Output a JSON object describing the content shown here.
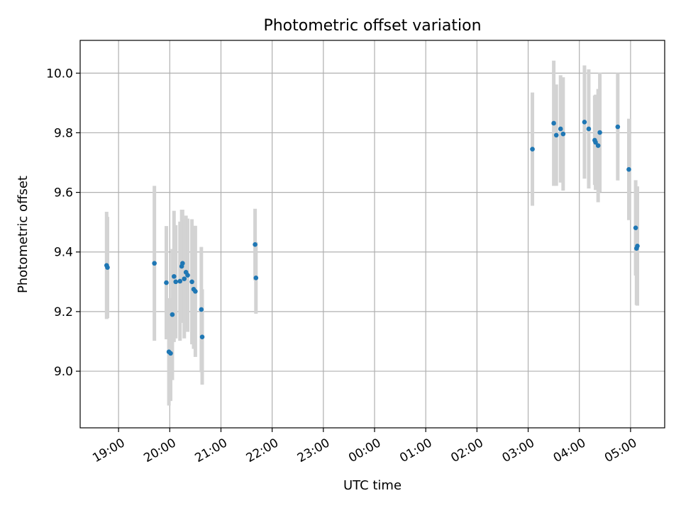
{
  "chart_data": {
    "type": "scatter",
    "title": "Photometric offset variation",
    "xlabel": "UTC time",
    "ylabel": "Photometric offset",
    "x_axis": {
      "type": "time",
      "range": [
        "2020-01-01T18:15",
        "2020-01-02T05:40"
      ],
      "tick_values": [
        "2020-01-01T19:00",
        "2020-01-01T20:00",
        "2020-01-01T21:00",
        "2020-01-01T22:00",
        "2020-01-01T23:00",
        "2020-01-02T00:00",
        "2020-01-02T01:00",
        "2020-01-02T02:00",
        "2020-01-02T03:00",
        "2020-01-02T04:00",
        "2020-01-02T05:00"
      ],
      "tick_labels": [
        "19:00",
        "20:00",
        "21:00",
        "22:00",
        "23:00",
        "00:00",
        "01:00",
        "02:00",
        "03:00",
        "04:00",
        "05:00"
      ]
    },
    "y_axis": {
      "range": [
        8.81,
        10.11
      ],
      "tick_values": [
        9.0,
        9.2,
        9.4,
        9.6,
        9.8,
        10.0
      ],
      "tick_labels": [
        "9.0",
        "9.2",
        "9.4",
        "9.6",
        "9.8",
        "10.0"
      ]
    },
    "grid": true,
    "colors": {
      "point": "#1f77b4",
      "errorbar": "#d3d3d3",
      "grid": "#b0b0b0",
      "axes": "#000000"
    },
    "points": [
      {
        "x": "2020-01-01T18:46",
        "y": 9.355,
        "err": 0.18
      },
      {
        "x": "2020-01-01T18:47",
        "y": 9.348,
        "err": 0.17
      },
      {
        "x": "2020-01-01T19:42",
        "y": 9.362,
        "err": 0.26
      },
      {
        "x": "2020-01-01T19:56",
        "y": 9.297,
        "err": 0.19
      },
      {
        "x": "2020-01-01T19:59",
        "y": 9.065,
        "err": 0.18
      },
      {
        "x": "2020-01-01T20:01",
        "y": 9.06,
        "err": 0.16
      },
      {
        "x": "2020-01-01T20:03",
        "y": 9.19,
        "err": 0.22
      },
      {
        "x": "2020-01-01T20:05",
        "y": 9.318,
        "err": 0.22
      },
      {
        "x": "2020-01-01T20:07",
        "y": 9.3,
        "err": 0.19
      },
      {
        "x": "2020-01-01T20:12",
        "y": 9.302,
        "err": 0.2
      },
      {
        "x": "2020-01-01T20:14",
        "y": 9.352,
        "err": 0.19
      },
      {
        "x": "2020-01-01T20:15",
        "y": 9.362,
        "err": 0.18
      },
      {
        "x": "2020-01-01T20:17",
        "y": 9.31,
        "err": 0.2
      },
      {
        "x": "2020-01-01T20:19",
        "y": 9.332,
        "err": 0.19
      },
      {
        "x": "2020-01-01T20:21",
        "y": 9.322,
        "err": 0.19
      },
      {
        "x": "2020-01-01T20:26",
        "y": 9.3,
        "err": 0.21
      },
      {
        "x": "2020-01-01T20:28",
        "y": 9.275,
        "err": 0.2
      },
      {
        "x": "2020-01-01T20:30",
        "y": 9.268,
        "err": 0.22
      },
      {
        "x": "2020-01-01T20:37",
        "y": 9.207,
        "err": 0.21
      },
      {
        "x": "2020-01-01T20:38",
        "y": 9.115,
        "err": 0.16
      },
      {
        "x": "2020-01-01T21:40",
        "y": 9.425,
        "err": 0.12
      },
      {
        "x": "2020-01-01T21:41",
        "y": 9.313,
        "err": 0.12
      },
      {
        "x": "2020-01-02T03:05",
        "y": 9.745,
        "err": 0.19
      },
      {
        "x": "2020-01-02T03:30",
        "y": 9.832,
        "err": 0.21
      },
      {
        "x": "2020-01-02T03:33",
        "y": 9.792,
        "err": 0.17
      },
      {
        "x": "2020-01-02T03:38",
        "y": 9.813,
        "err": 0.18
      },
      {
        "x": "2020-01-02T03:41",
        "y": 9.796,
        "err": 0.19
      },
      {
        "x": "2020-01-02T04:06",
        "y": 9.836,
        "err": 0.19
      },
      {
        "x": "2020-01-02T04:11",
        "y": 9.813,
        "err": 0.2
      },
      {
        "x": "2020-01-02T04:18",
        "y": 9.775,
        "err": 0.15
      },
      {
        "x": "2020-01-02T04:19",
        "y": 9.768,
        "err": 0.16
      },
      {
        "x": "2020-01-02T04:22",
        "y": 9.757,
        "err": 0.19
      },
      {
        "x": "2020-01-02T04:24",
        "y": 9.801,
        "err": 0.2
      },
      {
        "x": "2020-01-02T04:45",
        "y": 9.82,
        "err": 0.18
      },
      {
        "x": "2020-01-02T04:58",
        "y": 9.677,
        "err": 0.17
      },
      {
        "x": "2020-01-02T05:06",
        "y": 9.481,
        "err": 0.16
      },
      {
        "x": "2020-01-02T05:07",
        "y": 9.412,
        "err": 0.19
      },
      {
        "x": "2020-01-02T05:08",
        "y": 9.42,
        "err": 0.2
      }
    ]
  }
}
